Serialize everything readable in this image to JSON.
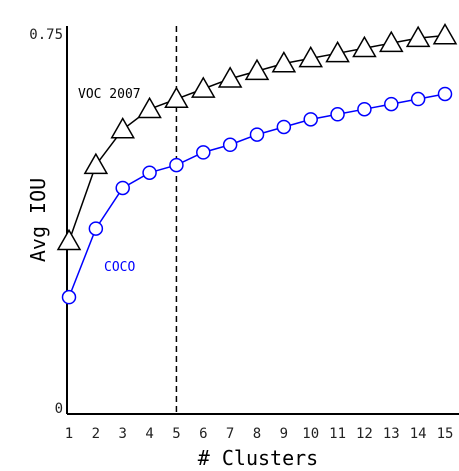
{
  "chart_data": {
    "type": "line",
    "xlabel": "# Clusters",
    "ylabel": "Avg IOU",
    "x": [
      1,
      2,
      3,
      4,
      5,
      6,
      7,
      8,
      9,
      10,
      11,
      12,
      13,
      14,
      15
    ],
    "ylim": [
      0,
      0.75
    ],
    "yticks": [
      "0",
      "0.75"
    ],
    "reference_line_x": 5,
    "series": [
      {
        "name": "VOC 2007",
        "marker": "triangle",
        "color": "#000000",
        "values": [
          0.34,
          0.49,
          0.56,
          0.6,
          0.62,
          0.64,
          0.66,
          0.675,
          0.69,
          0.7,
          0.71,
          0.72,
          0.73,
          0.74,
          0.745
        ]
      },
      {
        "name": "COCO",
        "marker": "circle",
        "color": "#0000ff",
        "values": [
          0.23,
          0.365,
          0.445,
          0.475,
          0.49,
          0.515,
          0.53,
          0.55,
          0.565,
          0.58,
          0.59,
          0.6,
          0.61,
          0.62,
          0.63
        ]
      }
    ]
  }
}
